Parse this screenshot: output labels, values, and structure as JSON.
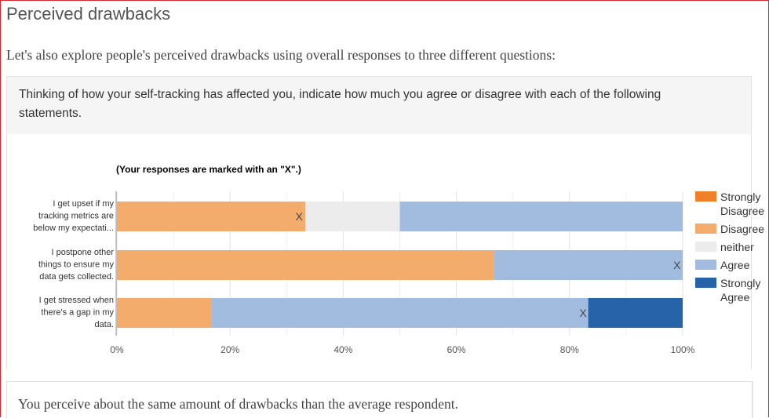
{
  "page": {
    "title": "Perceived drawbacks",
    "intro": "Let's also explore people's perceived drawbacks using overall responses to three different questions:",
    "question": "Thinking of how your self-tracking has affected you, indicate how much you agree or disagree with each of the following statements.",
    "result": "You perceive about the same amount of drawbacks than the average respondent."
  },
  "chart_data": {
    "type": "bar",
    "orientation": "horizontal",
    "stacked": true,
    "title": "(Your responses are marked with an \"X\".)",
    "categories": [
      [
        "I get upset if my",
        "tracking metrics are",
        "below my expectati..."
      ],
      [
        "I postpone other",
        "things to ensure my",
        "data gets collected."
      ],
      [
        "I get stressed when",
        "there's a gap in my",
        "data."
      ]
    ],
    "series": [
      {
        "name": "Strongly Disagree",
        "color": "#f07f2a",
        "values": [
          0,
          0,
          0
        ]
      },
      {
        "name": "Disagree",
        "color": "#f3ac6c",
        "values": [
          33.3,
          66.7,
          16.7
        ]
      },
      {
        "name": "neither",
        "color": "#ececec",
        "values": [
          16.7,
          0,
          0
        ]
      },
      {
        "name": "Agree",
        "color": "#a2bce0",
        "values": [
          50.0,
          33.3,
          66.6
        ]
      },
      {
        "name": "Strongly Agree",
        "color": "#2763a8",
        "values": [
          0,
          0,
          16.7
        ]
      }
    ],
    "user_marks": [
      {
        "row": 0,
        "x": 32.2,
        "label": "X"
      },
      {
        "row": 1,
        "x": 99.0,
        "label": "X"
      },
      {
        "row": 2,
        "x": 82.4,
        "label": "X"
      }
    ],
    "xlim": [
      0,
      100
    ],
    "xticks": [
      "0%",
      "20%",
      "40%",
      "60%",
      "80%",
      "100%"
    ],
    "legend_position": "right",
    "legend": [
      {
        "lines": [
          "Strongly",
          "Disagree"
        ],
        "color": "#f07f2a"
      },
      {
        "lines": [
          "Disagree"
        ],
        "color": "#f3ac6c"
      },
      {
        "lines": [
          "neither"
        ],
        "color": "#ececec"
      },
      {
        "lines": [
          "Agree"
        ],
        "color": "#a2bce0"
      },
      {
        "lines": [
          "Strongly",
          "Agree"
        ],
        "color": "#2763a8"
      }
    ],
    "grid": true
  }
}
